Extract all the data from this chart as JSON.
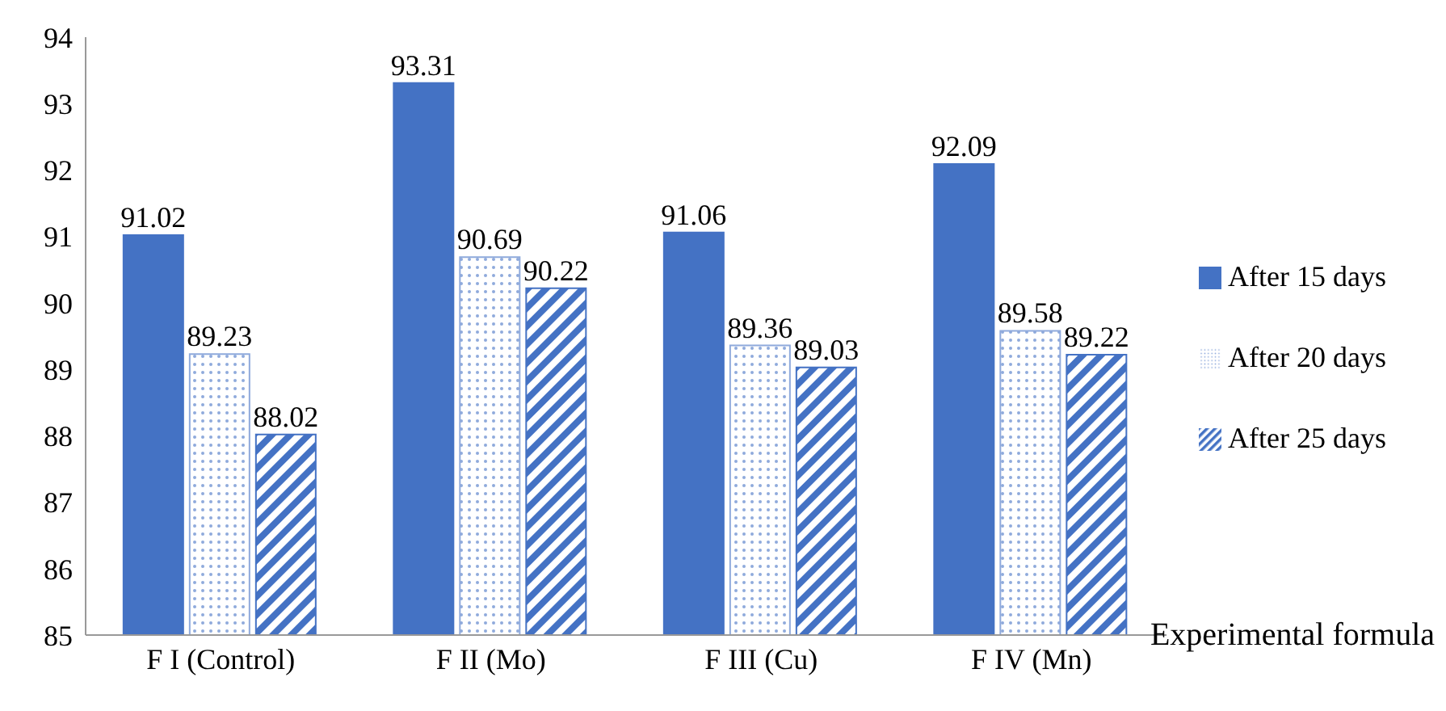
{
  "chart_data": {
    "type": "bar",
    "xlabel": "Experimental formula",
    "categories": [
      "F I (Control)",
      "F II (Mo)",
      "F III (Cu)",
      "F IV (Mn)"
    ],
    "series": [
      {
        "name": "After 15 days",
        "color": "#4472c4",
        "values": [
          91.02,
          93.31,
          91.06,
          92.09
        ]
      },
      {
        "name": "After 20 days",
        "color": "#8faadc",
        "values": [
          89.23,
          90.69,
          89.36,
          89.58
        ]
      },
      {
        "name": "After 25 days",
        "color": "#4472c4",
        "values": [
          88.02,
          90.22,
          89.03,
          89.22
        ]
      }
    ],
    "ylim": [
      85,
      94
    ],
    "yticks": [
      85,
      86,
      87,
      88,
      89,
      90,
      91,
      92,
      93,
      94
    ],
    "grid": false,
    "legend": "right",
    "data_labels": true
  }
}
